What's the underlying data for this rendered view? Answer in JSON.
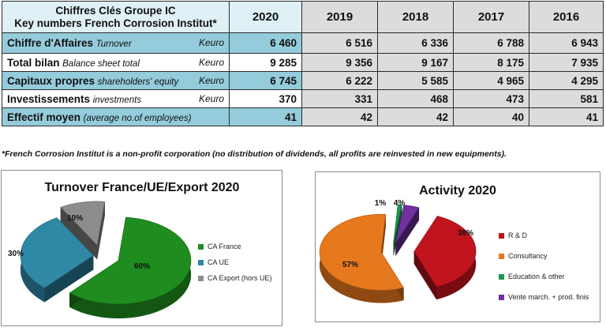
{
  "table": {
    "header_label_line1": "Chiffres Clés Groupe IC",
    "header_label_line2": "Key numbers French Corrosion Institut*",
    "years": [
      "2020",
      "2019",
      "2018",
      "2017",
      "2016"
    ],
    "rows": [
      {
        "label_fr": "Chiffre d'Affaires",
        "label_en": "Turnover",
        "unit": "Keuro",
        "values": [
          "6 460",
          "6 516",
          "6 336",
          "6 788",
          "6 943"
        ]
      },
      {
        "label_fr": "Total bilan",
        "label_en": "Balance sheet total",
        "unit": "Keuro",
        "values": [
          "9 285",
          "9 356",
          "9 167",
          "8 175",
          "7 935"
        ]
      },
      {
        "label_fr": "Capitaux propres",
        "label_en": "shareholders' equity",
        "unit": "Keuro",
        "values": [
          "6 745",
          "6 222",
          "5 585",
          "4 965",
          "4 295"
        ]
      },
      {
        "label_fr": "Investissements",
        "label_en": "investments",
        "unit": "Keuro",
        "values": [
          "370",
          "331",
          "468",
          "473",
          "581"
        ]
      },
      {
        "label_fr": "Effectif moyen",
        "label_en": "(average no.of employees)",
        "unit": "",
        "values": [
          "41",
          "42",
          "42",
          "40",
          "41"
        ]
      }
    ]
  },
  "footnote": "*French Corrosion Institut is a non-profit corporation (no distribution of dividends, all profits are reinvested in new equipments).",
  "chart_data": [
    {
      "type": "pie",
      "title": "Turnover France/UE/Export 2020",
      "legend_position": "right",
      "slices": [
        {
          "label": "CA France",
          "value": 60,
          "value_label": "60%",
          "color": "#1e8c1e"
        },
        {
          "label": "CA UE",
          "value": 30,
          "value_label": "30%",
          "color": "#2e88a6"
        },
        {
          "label": "CA Export (hors UE)",
          "value": 10,
          "value_label": "10%",
          "color": "#8c8c8c"
        }
      ]
    },
    {
      "type": "pie",
      "title": "Activity 2020",
      "legend_position": "right",
      "slices": [
        {
          "label": "R & D",
          "value": 38,
          "value_label": "38%",
          "color": "#c0141e"
        },
        {
          "label": "Consultancy",
          "value": 57,
          "value_label": "57%",
          "color": "#e6781e"
        },
        {
          "label": "Education & other",
          "value": 1,
          "value_label": "1%",
          "color": "#1e9650"
        },
        {
          "label": "Vente march. + prod. finis",
          "value": 4,
          "value_label": "4%",
          "color": "#7030a0"
        }
      ]
    }
  ]
}
